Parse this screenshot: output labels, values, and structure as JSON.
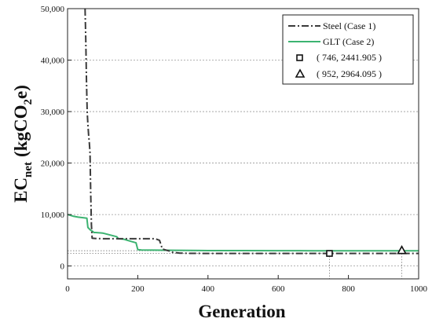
{
  "chart_data": {
    "type": "line",
    "xlabel": "Generation",
    "ylabel": "EC",
    "ylabel_sub": "net",
    "ylabel_unit_open": "(kgCO",
    "ylabel_unit_sub": "2",
    "ylabel_unit_close": "e)",
    "xlim": [
      0,
      1000
    ],
    "ylim": [
      -2500,
      50000
    ],
    "xticks": [
      0,
      200,
      400,
      600,
      800,
      1000
    ],
    "xtick_labels": [
      "0",
      "200",
      "400",
      "600",
      "800",
      "1000"
    ],
    "yticks": [
      0,
      10000,
      20000,
      30000,
      40000,
      50000
    ],
    "ytick_labels": [
      "0",
      "10,000",
      "20,000",
      "30,000",
      "40,000",
      "50,000"
    ],
    "grid": "horizontal dotted",
    "legend_position": "top-right",
    "series": [
      {
        "name": "Steel (Case 1)",
        "color": "#3a3a3a",
        "style": "dash-dot",
        "x": [
          50,
          52,
          54,
          56,
          58,
          60,
          62,
          64,
          66,
          68,
          70,
          80,
          100,
          150,
          200,
          250,
          262,
          270,
          290,
          300,
          320,
          350,
          400,
          500,
          600,
          700,
          746,
          800,
          900,
          1000
        ],
        "y": [
          50000,
          44000,
          36000,
          30000,
          27500,
          25500,
          24000,
          22000,
          14000,
          8000,
          5400,
          5350,
          5300,
          5300,
          5300,
          5300,
          5000,
          3300,
          2900,
          2650,
          2500,
          2460,
          2445,
          2442,
          2442,
          2442,
          2441.905,
          2442,
          2442,
          2442
        ]
      },
      {
        "name": "GLT (Case 2)",
        "color": "#3cb371",
        "style": "solid",
        "x": [
          0,
          15,
          30,
          55,
          58,
          65,
          72,
          75,
          80,
          100,
          140,
          145,
          160,
          180,
          195,
          200,
          210,
          300,
          400,
          500,
          600,
          700,
          800,
          900,
          952,
          1000
        ],
        "y": [
          10000,
          9700,
          9500,
          9300,
          7500,
          7000,
          6700,
          6500,
          6500,
          6400,
          5700,
          5300,
          5200,
          4800,
          4500,
          3200,
          3100,
          3050,
          3000,
          2990,
          2980,
          2970,
          2966,
          2965,
          2964.095,
          2964
        ]
      }
    ],
    "markers": [
      {
        "label": "( 746, 2441.905 )",
        "x": 746,
        "y": 2441.905,
        "shape": "square"
      },
      {
        "label": "( 952, 2964.095 )",
        "x": 952,
        "y": 2964.095,
        "shape": "triangle"
      }
    ]
  }
}
